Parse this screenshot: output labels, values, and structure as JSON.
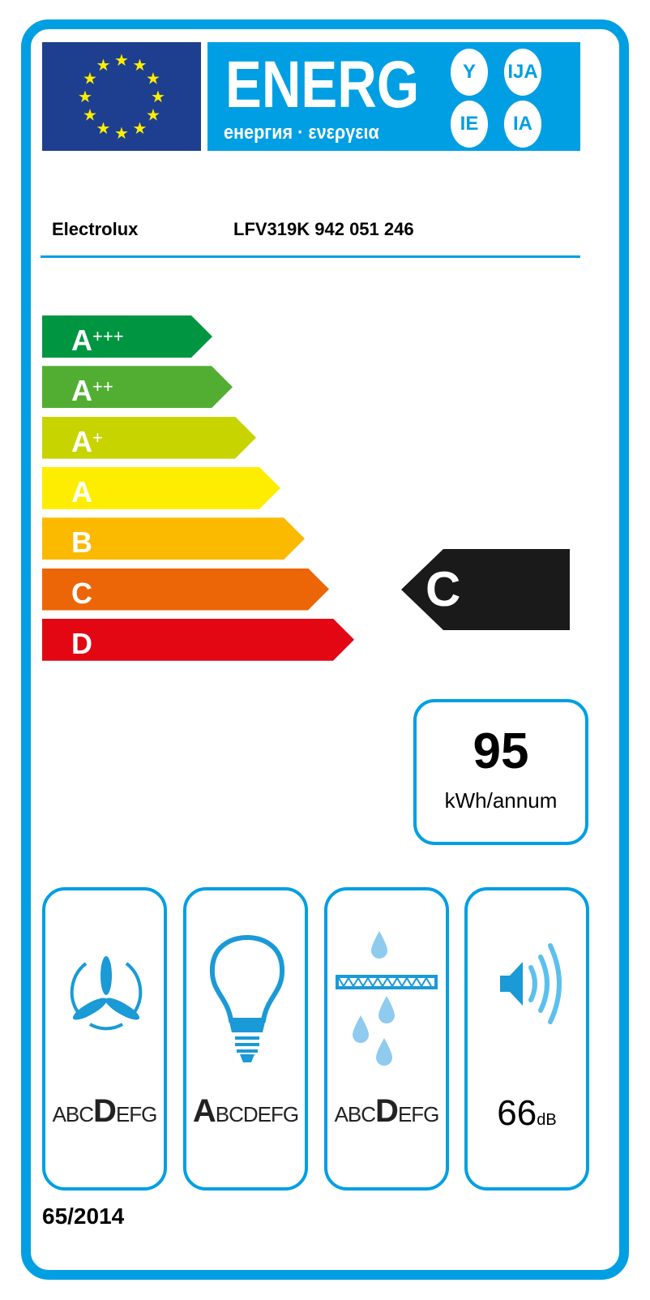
{
  "header": {
    "title": "ENERG",
    "subtitle": "енергия · ενεργεια",
    "suffixes": [
      "Y",
      "IJA",
      "IE",
      "IA"
    ]
  },
  "supplier": {
    "name": "Electrolux",
    "model": "LFV319K  942 051 246"
  },
  "scale": [
    {
      "label": "A",
      "sup": "+++",
      "color": "#009641"
    },
    {
      "label": "A",
      "sup": "++",
      "color": "#52ae32"
    },
    {
      "label": "A",
      "sup": "+",
      "color": "#c8d400"
    },
    {
      "label": "A",
      "sup": "",
      "color": "#ffed00"
    },
    {
      "label": "B",
      "sup": "",
      "color": "#fbba00"
    },
    {
      "label": "C",
      "sup": "",
      "color": "#ec6608"
    },
    {
      "label": "D",
      "sup": "",
      "color": "#e30613"
    }
  ],
  "energy_class": "C",
  "consumption": {
    "value": "95",
    "unit": "kWh/annum"
  },
  "pictograms": [
    {
      "icon": "fan-icon",
      "scale": "ABCDEFG",
      "class": "D"
    },
    {
      "icon": "lightbulb-icon",
      "scale": "ABCDEFG",
      "class": "A"
    },
    {
      "icon": "grease-filter-icon",
      "scale": "ABCDEFG",
      "class": "D"
    },
    {
      "icon": "speaker-noise-icon",
      "value": "66",
      "unit": "dB"
    }
  ],
  "regulation": "65/2014",
  "colors": {
    "frame": "#009fe3",
    "flag": "#1e3f8f",
    "star": "#ffed00"
  }
}
